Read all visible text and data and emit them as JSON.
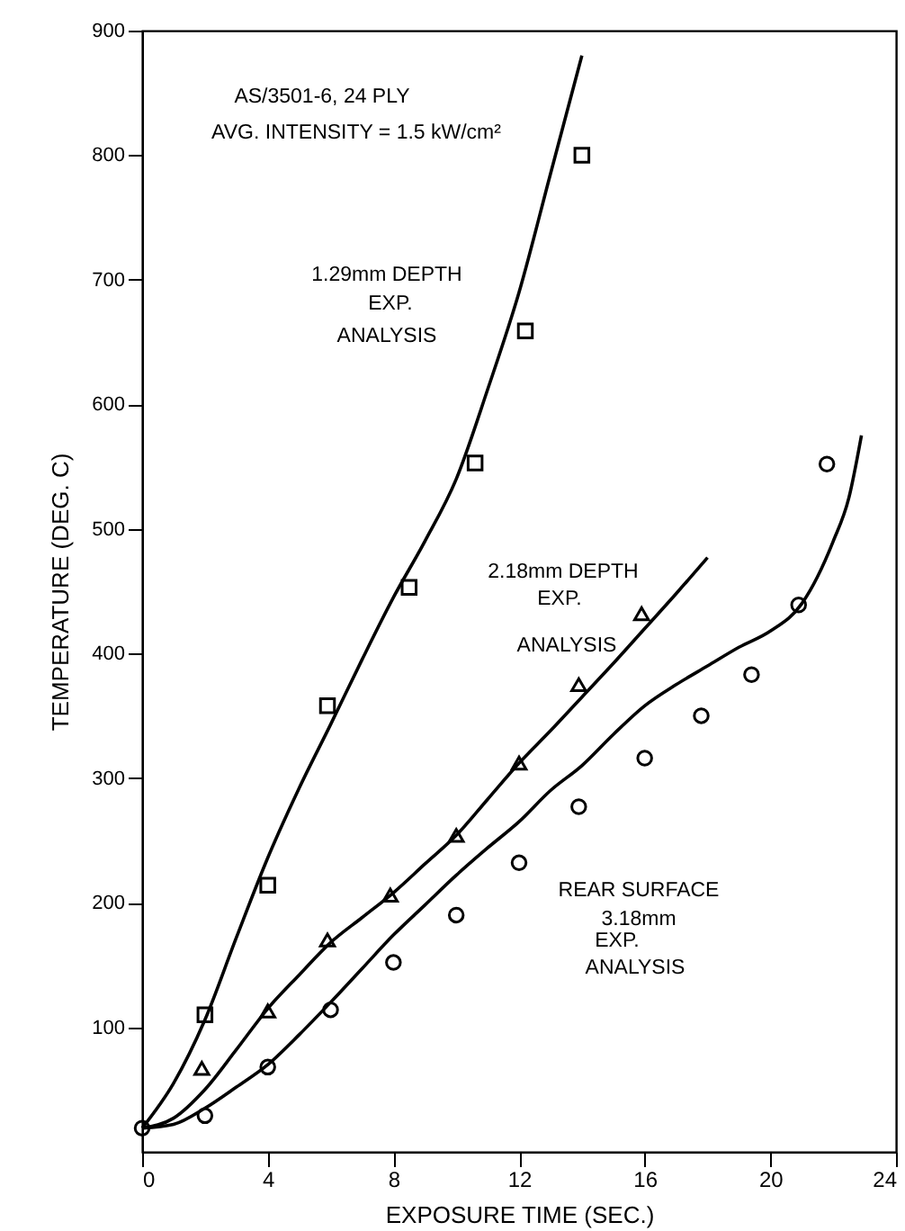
{
  "chart_data": {
    "type": "scatter",
    "xlabel": "EXPOSURE TIME (SEC.)",
    "ylabel": "TEMPERATURE (DEG. C)",
    "xlim": [
      0,
      24
    ],
    "xticks": [
      0,
      4,
      8,
      12,
      16,
      20,
      24
    ],
    "ylim": [
      0,
      900
    ],
    "yticks": [
      100,
      200,
      300,
      400,
      500,
      600,
      700,
      800,
      900
    ],
    "series": [
      {
        "marker": "square",
        "color": "#000000",
        "x": [
          2,
          4,
          5.9,
          8.5,
          10.6,
          12.2,
          14
        ],
        "values": [
          110,
          214,
          358,
          453,
          553,
          659,
          800
        ]
      },
      {
        "type": "line",
        "line_style": "solid",
        "color": "#000000",
        "x": [
          0,
          1,
          2,
          3,
          4,
          5,
          6,
          7,
          8,
          9,
          10,
          11,
          12,
          13,
          14
        ],
        "values": [
          19,
          55,
          106,
          172,
          236,
          292,
          343,
          395,
          445,
          490,
          540,
          612,
          690,
          785,
          880
        ]
      },
      {
        "marker": "triangle",
        "color": "#000000",
        "x": [
          1.9,
          4,
          5.9,
          7.9,
          10,
          12,
          13.9,
          15.9
        ],
        "values": [
          67,
          113,
          170,
          206,
          254,
          312,
          375,
          432
        ]
      },
      {
        "type": "line",
        "line_style": "solid",
        "color": "#000000",
        "x": [
          0,
          1,
          2,
          3,
          4,
          5,
          6,
          7,
          8,
          9,
          10,
          11,
          12,
          13,
          14,
          15,
          16,
          17,
          18
        ],
        "values": [
          19,
          27,
          50,
          82,
          115,
          142,
          168,
          188,
          208,
          231,
          254,
          283,
          312,
          338,
          365,
          392,
          420,
          448,
          477
        ]
      },
      {
        "marker": "circle",
        "color": "#000000",
        "x": [
          0,
          2,
          4,
          6,
          8,
          10,
          12,
          13.9,
          16,
          17.8,
          19.4,
          20.9,
          21.8
        ],
        "values": [
          19,
          29,
          68,
          114,
          152,
          190,
          232,
          277,
          316,
          350,
          383,
          439,
          552
        ]
      },
      {
        "type": "line",
        "line_style": "solid",
        "color": "#000000",
        "x": [
          0,
          1,
          2,
          3,
          4,
          5,
          6,
          7,
          8,
          9,
          10,
          11,
          12,
          13,
          14,
          15,
          16,
          17,
          18,
          19,
          20,
          21,
          22,
          22.5,
          22.9
        ],
        "values": [
          19,
          22,
          35,
          52,
          70,
          94,
          120,
          147,
          174,
          198,
          222,
          244,
          265,
          290,
          310,
          335,
          358,
          375,
          390,
          405,
          418,
          440,
          490,
          525,
          575
        ]
      }
    ],
    "annotations": [
      "AS/3501-6, 24 PLY",
      "AVG. INTENSITY = 1.5 kW/cm²",
      "1.29mm DEPTH",
      "EXP.",
      "ANALYSIS",
      "2.18mm DEPTH",
      "EXP.",
      "ANALYSIS",
      "REAR SURFACE",
      "3.18mm",
      "EXP.",
      "ANALYSIS"
    ]
  }
}
